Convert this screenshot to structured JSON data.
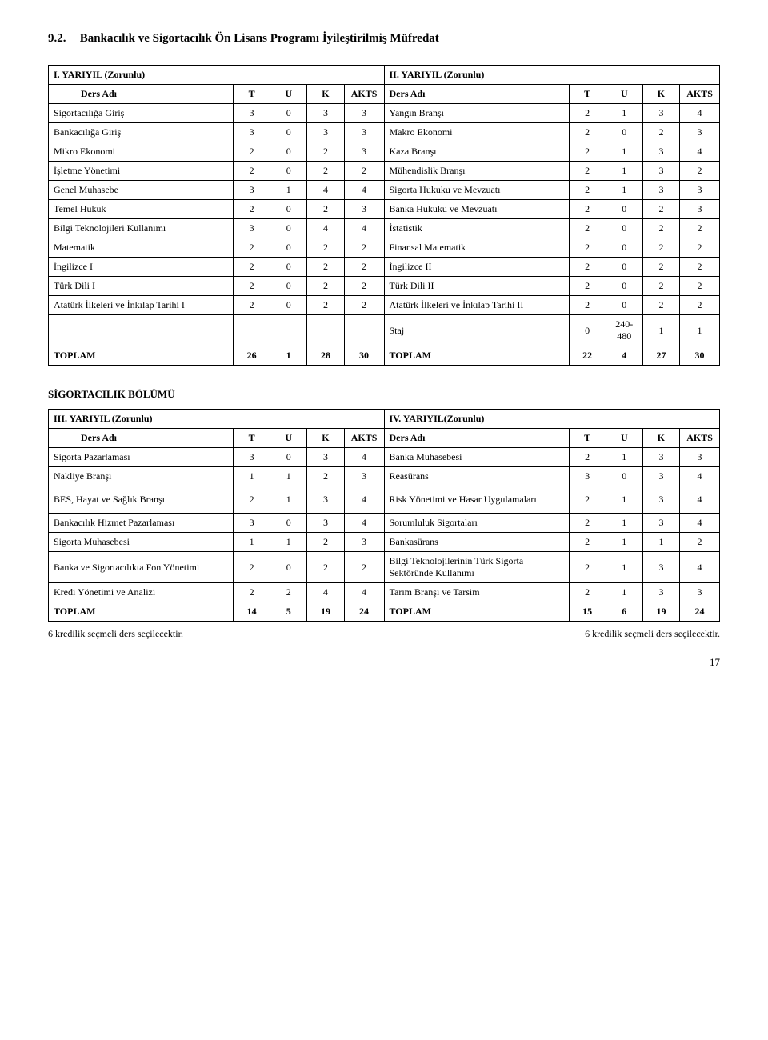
{
  "heading_num": "9.2.",
  "heading_text": "Bankacılık ve Sigortacılık Ön Lisans Programı İyileştirilmiş Müfredat",
  "table1": {
    "left_title": "I. YARIYIL (Zorunlu)",
    "right_title": "II. YARIYIL (Zorunlu)",
    "col_headers": [
      "Ders Adı",
      "T",
      "U",
      "K",
      "AKTS",
      "Ders Adı",
      "T",
      "U",
      "K",
      "AKTS"
    ],
    "rows": [
      [
        "Sigortacılığa Giriş",
        "3",
        "0",
        "3",
        "3",
        "Yangın Branşı",
        "2",
        "1",
        "3",
        "4"
      ],
      [
        "Bankacılığa Giriş",
        "3",
        "0",
        "3",
        "3",
        "Makro Ekonomi",
        "2",
        "0",
        "2",
        "3"
      ],
      [
        "Mikro Ekonomi",
        "2",
        "0",
        "2",
        "3",
        "Kaza Branşı",
        "2",
        "1",
        "3",
        "4"
      ],
      [
        "İşletme Yönetimi",
        "2",
        "0",
        "2",
        "2",
        "Mühendislik Branşı",
        "2",
        "1",
        "3",
        "2"
      ],
      [
        "Genel Muhasebe",
        "3",
        "1",
        "4",
        "4",
        "Sigorta Hukuku ve Mevzuatı",
        "2",
        "1",
        "3",
        "3"
      ],
      [
        "Temel Hukuk",
        "2",
        "0",
        "2",
        "3",
        "Banka Hukuku ve Mevzuatı",
        "2",
        "0",
        "2",
        "3"
      ],
      [
        "Bilgi Teknolojileri Kullanımı",
        "3",
        "0",
        "4",
        "4",
        "İstatistik",
        "2",
        "0",
        "2",
        "2"
      ],
      [
        "Matematik",
        "2",
        "0",
        "2",
        "2",
        "Finansal Matematik",
        "2",
        "0",
        "2",
        "2"
      ],
      [
        "İngilizce I",
        "2",
        "0",
        "2",
        "2",
        "İngilizce II",
        "2",
        "0",
        "2",
        "2"
      ],
      [
        "Türk Dili I",
        "2",
        "0",
        "2",
        "2",
        "Türk Dili II",
        "2",
        "0",
        "2",
        "2"
      ],
      [
        "Atatürk İlkeleri ve İnkılap Tarihi I",
        "2",
        "0",
        "2",
        "2",
        "Atatürk İlkeleri ve İnkılap Tarihi II",
        "2",
        "0",
        "2",
        "2"
      ]
    ],
    "staj_row": [
      "",
      "",
      "",
      "",
      "",
      "Staj",
      "0",
      "240-480",
      "1",
      "1"
    ],
    "total_row": [
      "TOPLAM",
      "26",
      "1",
      "28",
      "30",
      "TOPLAM",
      "22",
      "4",
      "27",
      "30"
    ]
  },
  "section2_title": "SİGORTACILIK BÖLÜMÜ",
  "table2": {
    "left_title": "III. YARIYIL (Zorunlu)",
    "right_title": "IV. YARIYIL(Zorunlu)",
    "col_headers": [
      "Ders Adı",
      "T",
      "U",
      "K",
      "AKTS",
      "Ders Adı",
      "T",
      "U",
      "K",
      "AKTS"
    ],
    "rows": [
      [
        "Sigorta Pazarlaması",
        "3",
        "0",
        "3",
        "4",
        "Banka Muhasebesi",
        "2",
        "1",
        "3",
        "3"
      ],
      [
        "Nakliye Branşı",
        "1",
        "1",
        "2",
        "3",
        "Reasürans",
        "3",
        "0",
        "3",
        "4"
      ],
      [
        "BES, Hayat ve Sağlık Branşı",
        "2",
        "1",
        "3",
        "4",
        "Risk Yönetimi ve Hasar Uygulamaları",
        "2",
        "1",
        "3",
        "4"
      ],
      [
        "Bankacılık Hizmet Pazarlaması",
        "3",
        "0",
        "3",
        "4",
        "Sorumluluk Sigortaları",
        "2",
        "1",
        "3",
        "4"
      ],
      [
        "Sigorta Muhasebesi",
        "1",
        "1",
        "2",
        "3",
        "Bankasürans",
        "2",
        "1",
        "1",
        "2"
      ],
      [
        "Banka ve Sigortacılıkta Fon Yönetimi",
        "2",
        "0",
        "2",
        "2",
        "Bilgi Teknolojilerinin Türk Sigorta Sektöründe Kullanımı",
        "2",
        "1",
        "3",
        "4"
      ],
      [
        "Kredi Yönetimi ve Analizi",
        "2",
        "2",
        "4",
        "4",
        "Tarım Branşı ve Tarsim",
        "2",
        "1",
        "3",
        "3"
      ]
    ],
    "total_row": [
      "TOPLAM",
      "14",
      "5",
      "19",
      "24",
      "TOPLAM",
      "15",
      "6",
      "19",
      "24"
    ]
  },
  "footnote_left": "6 kredilik seçmeli ders seçilecektir.",
  "footnote_right": "6 kredilik seçmeli ders seçilecektir.",
  "page_number": "17"
}
